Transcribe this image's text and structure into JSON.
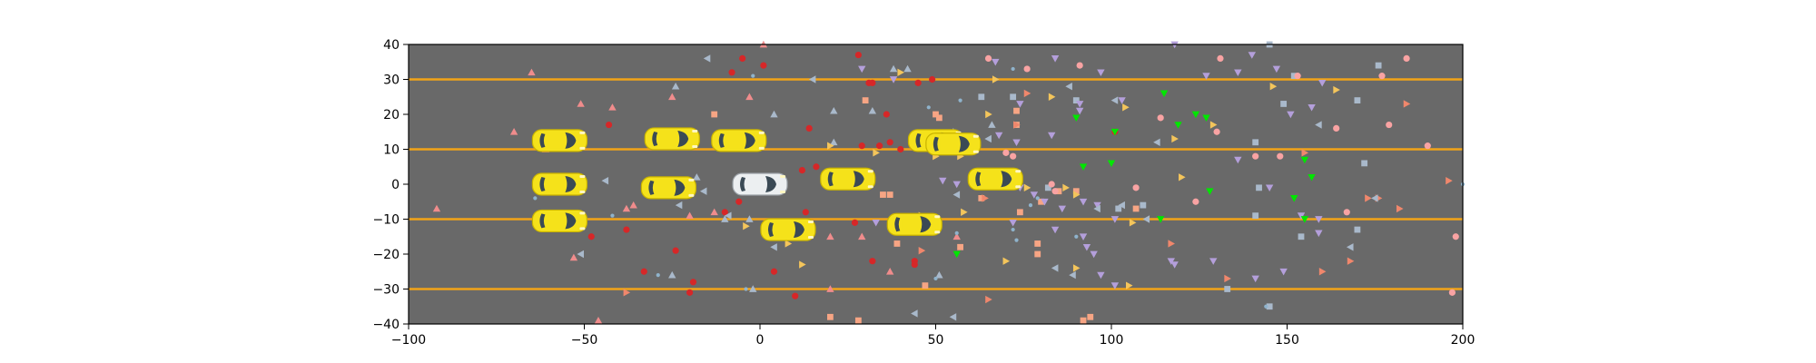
{
  "chart_data": {
    "type": "scatter",
    "title": "",
    "xlabel": "",
    "ylabel": "",
    "xlim": [
      -100,
      200
    ],
    "ylim": [
      -40,
      40
    ],
    "x_ticks": [
      -100,
      -50,
      0,
      50,
      100,
      150,
      200
    ],
    "y_ticks": [
      -40,
      -30,
      -20,
      -10,
      0,
      10,
      20,
      30,
      40
    ],
    "x_tick_labels": [
      "−100",
      "−50",
      "0",
      "50",
      "100",
      "150",
      "200"
    ],
    "y_tick_labels": [
      "−40",
      "−30",
      "−20",
      "−10",
      "0",
      "10",
      "20",
      "30",
      "40"
    ],
    "grid": false,
    "background_color": "#696969",
    "lane_line_color": "#f2a418",
    "lane_lines_y": [
      -30,
      -10,
      10,
      30
    ],
    "vehicles": [
      {
        "x": -57,
        "y": 12.5,
        "color": "yellow"
      },
      {
        "x": -25,
        "y": 13,
        "color": "yellow"
      },
      {
        "x": -6,
        "y": 12.5,
        "color": "yellow"
      },
      {
        "x": 50,
        "y": 12.5,
        "color": "yellow"
      },
      {
        "x": 55,
        "y": 11.5,
        "color": "yellow"
      },
      {
        "x": -57,
        "y": 0,
        "color": "yellow"
      },
      {
        "x": -26,
        "y": -1,
        "color": "yellow"
      },
      {
        "x": 0,
        "y": 0,
        "color": "white"
      },
      {
        "x": 25,
        "y": 1.5,
        "color": "yellow"
      },
      {
        "x": 67,
        "y": 1.5,
        "color": "yellow"
      },
      {
        "x": -57,
        "y": -10.5,
        "color": "yellow"
      },
      {
        "x": 8,
        "y": -13,
        "color": "yellow"
      },
      {
        "x": 44,
        "y": -11.5,
        "color": "yellow"
      }
    ],
    "series": [
      {
        "marker": "circle",
        "color": "#d62728",
        "points": [
          [
            -8,
            32
          ],
          [
            -5,
            36
          ],
          [
            1,
            34
          ],
          [
            28,
            37
          ],
          [
            31,
            29
          ],
          [
            32,
            29
          ],
          [
            36,
            20
          ],
          [
            45,
            29
          ],
          [
            49,
            30
          ],
          [
            -43,
            17
          ],
          [
            14,
            16
          ],
          [
            29,
            11
          ],
          [
            34,
            11
          ],
          [
            37,
            12
          ],
          [
            40,
            10
          ],
          [
            101,
            15
          ],
          [
            12,
            4
          ],
          [
            16,
            5
          ],
          [
            -10,
            -8
          ],
          [
            -6,
            -5
          ],
          [
            13,
            -8
          ],
          [
            -48,
            -15
          ],
          [
            -38,
            -13
          ],
          [
            -24,
            -19
          ],
          [
            -33,
            -25
          ],
          [
            -19,
            -28
          ],
          [
            -20,
            -31
          ],
          [
            4,
            -25
          ],
          [
            10,
            -32
          ],
          [
            27,
            -11
          ],
          [
            32,
            -22
          ],
          [
            44,
            -22
          ],
          [
            44,
            -23
          ]
        ]
      },
      {
        "marker": "square",
        "color": "#f7a584",
        "points": [
          [
            -13,
            20
          ],
          [
            30,
            24
          ],
          [
            50,
            20
          ],
          [
            51,
            19
          ],
          [
            73,
            21
          ],
          [
            73,
            17
          ],
          [
            35,
            -3
          ],
          [
            37,
            -3
          ],
          [
            63,
            -4
          ],
          [
            74,
            -8
          ],
          [
            80,
            -5
          ],
          [
            90,
            -2
          ],
          [
            107,
            -7
          ],
          [
            85,
            -2
          ],
          [
            39,
            -17
          ],
          [
            57,
            -18
          ],
          [
            79,
            -20
          ],
          [
            79,
            -17
          ],
          [
            47,
            -29
          ],
          [
            20,
            -38
          ],
          [
            28,
            -39
          ],
          [
            92,
            -39
          ],
          [
            94,
            -38
          ]
        ]
      },
      {
        "marker": "square",
        "color": "#a9b9cb",
        "points": [
          [
            63,
            25
          ],
          [
            72,
            25
          ],
          [
            90,
            24
          ],
          [
            145,
            40
          ],
          [
            176,
            34
          ],
          [
            170,
            24
          ],
          [
            141,
            12
          ],
          [
            149,
            23
          ],
          [
            152,
            31
          ],
          [
            172,
            6
          ],
          [
            82,
            -1
          ],
          [
            102,
            -7
          ],
          [
            109,
            -6
          ],
          [
            141,
            -9
          ],
          [
            142,
            -1
          ],
          [
            154,
            -15
          ],
          [
            170,
            -13
          ],
          [
            133,
            -30
          ],
          [
            145,
            -35
          ]
        ]
      },
      {
        "marker": "circle",
        "color": "#f9a3a3",
        "points": [
          [
            65,
            36
          ],
          [
            76,
            33
          ],
          [
            91,
            34
          ],
          [
            131,
            36
          ],
          [
            153,
            31
          ],
          [
            177,
            31
          ],
          [
            184,
            36
          ],
          [
            114,
            19
          ],
          [
            130,
            15
          ],
          [
            141,
            8
          ],
          [
            148,
            8
          ],
          [
            164,
            16
          ],
          [
            179,
            17
          ],
          [
            190,
            11
          ],
          [
            70,
            9
          ],
          [
            72,
            8
          ],
          [
            63,
            2
          ],
          [
            83,
            0
          ],
          [
            84,
            -2
          ],
          [
            107,
            -1
          ],
          [
            124,
            -5
          ],
          [
            167,
            -8
          ],
          [
            198,
            -15
          ],
          [
            197,
            -31
          ]
        ]
      },
      {
        "marker": "triangle-up",
        "color": "#f08c8c",
        "points": [
          [
            -65,
            32
          ],
          [
            -70,
            15
          ],
          [
            -51,
            23
          ],
          [
            -42,
            22
          ],
          [
            -61,
            10
          ],
          [
            -25,
            25
          ],
          [
            -3,
            25
          ],
          [
            1,
            40
          ],
          [
            -92,
            -7
          ],
          [
            -38,
            -7
          ],
          [
            -36,
            -6
          ],
          [
            -20,
            -9
          ],
          [
            -13,
            -8
          ],
          [
            20,
            -15
          ],
          [
            -53,
            -21
          ],
          [
            29,
            -15
          ],
          [
            56,
            -15
          ],
          [
            37,
            -25
          ],
          [
            -46,
            -39
          ],
          [
            20,
            -30
          ]
        ]
      },
      {
        "marker": "triangle-up",
        "color": "#a9b9cb",
        "points": [
          [
            -24,
            28
          ],
          [
            4,
            20
          ],
          [
            21,
            21
          ],
          [
            32,
            21
          ],
          [
            38,
            33
          ],
          [
            42,
            33
          ],
          [
            55,
            15
          ],
          [
            66,
            17
          ],
          [
            -18,
            2
          ],
          [
            -10,
            -10
          ],
          [
            12,
            -12
          ],
          [
            -3,
            -10
          ],
          [
            21,
            12
          ],
          [
            48,
            12
          ],
          [
            -25,
            -26
          ],
          [
            51,
            -26
          ],
          [
            -2,
            -30
          ]
        ]
      },
      {
        "marker": "triangle-down",
        "color": "#b49fdb",
        "points": [
          [
            29,
            33
          ],
          [
            38,
            30
          ],
          [
            67,
            35
          ],
          [
            74,
            23
          ],
          [
            84,
            36
          ],
          [
            91,
            23
          ],
          [
            97,
            32
          ],
          [
            118,
            40
          ],
          [
            127,
            31
          ],
          [
            136,
            32
          ],
          [
            140,
            37
          ],
          [
            147,
            33
          ],
          [
            160,
            29
          ],
          [
            151,
            20
          ],
          [
            157,
            22
          ],
          [
            68,
            14
          ],
          [
            73,
            12
          ],
          [
            83,
            14
          ],
          [
            91,
            21
          ],
          [
            103,
            24
          ],
          [
            52,
            1
          ],
          [
            56,
            0
          ],
          [
            73,
            0
          ],
          [
            74,
            -1
          ],
          [
            78,
            -3
          ],
          [
            81,
            -5
          ],
          [
            86,
            -7
          ],
          [
            92,
            -5
          ],
          [
            96,
            -6
          ],
          [
            101,
            -10
          ],
          [
            117,
            -22
          ],
          [
            118,
            -23
          ],
          [
            129,
            -22
          ],
          [
            141,
            -27
          ],
          [
            149,
            -25
          ],
          [
            159,
            -14
          ],
          [
            159,
            -10
          ],
          [
            154,
            -9
          ],
          [
            145,
            -1
          ],
          [
            136,
            7
          ],
          [
            33,
            -11
          ],
          [
            72,
            -11
          ],
          [
            84,
            -13
          ],
          [
            92,
            -15
          ],
          [
            93,
            -18
          ],
          [
            95,
            -20
          ],
          [
            97,
            -26
          ],
          [
            101,
            -29
          ]
        ]
      },
      {
        "marker": "triangle-down",
        "color": "#00e600",
        "points": [
          [
            115,
            26
          ],
          [
            90,
            19
          ],
          [
            101,
            15
          ],
          [
            119,
            17
          ],
          [
            124,
            20
          ],
          [
            127,
            19
          ],
          [
            92,
            5
          ],
          [
            100,
            6
          ],
          [
            128,
            -2
          ],
          [
            155,
            7
          ],
          [
            157,
            2
          ],
          [
            152,
            -4
          ],
          [
            114,
            -10
          ],
          [
            155,
            -10
          ],
          [
            56,
            -20
          ]
        ]
      },
      {
        "marker": "triangle-right",
        "color": "#f4c55b",
        "points": [
          [
            40,
            32
          ],
          [
            67,
            30
          ],
          [
            65,
            20
          ],
          [
            83,
            25
          ],
          [
            104,
            22
          ],
          [
            118,
            13
          ],
          [
            129,
            17
          ],
          [
            146,
            28
          ],
          [
            164,
            27
          ],
          [
            20,
            11
          ],
          [
            33,
            9
          ],
          [
            50,
            8
          ],
          [
            57,
            8
          ],
          [
            46,
            -9
          ],
          [
            58,
            -8
          ],
          [
            76,
            -1
          ],
          [
            87,
            -1
          ],
          [
            90,
            -3
          ],
          [
            120,
            2
          ],
          [
            -4,
            -12
          ],
          [
            8,
            -17
          ],
          [
            12,
            -23
          ],
          [
            70,
            -22
          ],
          [
            90,
            -24
          ],
          [
            105,
            -29
          ],
          [
            106,
            -11
          ]
        ]
      },
      {
        "marker": "triangle-right",
        "color": "#f0876c",
        "points": [
          [
            76,
            26
          ],
          [
            73,
            17
          ],
          [
            184,
            23
          ],
          [
            155,
            9
          ],
          [
            173,
            -4
          ],
          [
            176,
            -4
          ],
          [
            196,
            1
          ],
          [
            160,
            -25
          ],
          [
            168,
            -22
          ],
          [
            117,
            -17
          ],
          [
            46,
            -19
          ],
          [
            65,
            -33
          ],
          [
            -38,
            -31
          ],
          [
            64,
            -4
          ],
          [
            133,
            -27
          ],
          [
            182,
            -7
          ]
        ]
      },
      {
        "marker": "triangle-left",
        "color": "#a9b9cb",
        "points": [
          [
            -15,
            36
          ],
          [
            15,
            30
          ],
          [
            65,
            13
          ],
          [
            88,
            28
          ],
          [
            101,
            24
          ],
          [
            113,
            12
          ],
          [
            159,
            17
          ],
          [
            175,
            -4
          ],
          [
            168,
            -18
          ],
          [
            103,
            -6
          ],
          [
            110,
            -10
          ],
          [
            96,
            -7
          ],
          [
            84,
            -24
          ],
          [
            89,
            -26
          ],
          [
            56,
            -3
          ],
          [
            -23,
            -6
          ],
          [
            -51,
            -20
          ],
          [
            -9,
            -9
          ],
          [
            4,
            -18
          ],
          [
            44,
            -37
          ],
          [
            55,
            -38
          ],
          [
            -44,
            1
          ],
          [
            -16,
            -2
          ]
        ]
      },
      {
        "marker": "circle-small",
        "color": "#8fb3cc",
        "points": [
          [
            -64,
            -4
          ],
          [
            -55,
            -10
          ],
          [
            -29,
            -26
          ],
          [
            -42,
            -9
          ],
          [
            -4,
            -30
          ],
          [
            6,
            -14
          ],
          [
            50,
            -27
          ],
          [
            56,
            -14
          ],
          [
            72,
            -13
          ],
          [
            90,
            -15
          ],
          [
            79,
            -4
          ],
          [
            -2,
            31
          ],
          [
            57,
            24
          ],
          [
            72,
            33
          ],
          [
            48,
            22
          ],
          [
            77,
            -6
          ],
          [
            73,
            -16
          ],
          [
            144,
            -35
          ],
          [
            200,
            0
          ]
        ]
      }
    ]
  }
}
